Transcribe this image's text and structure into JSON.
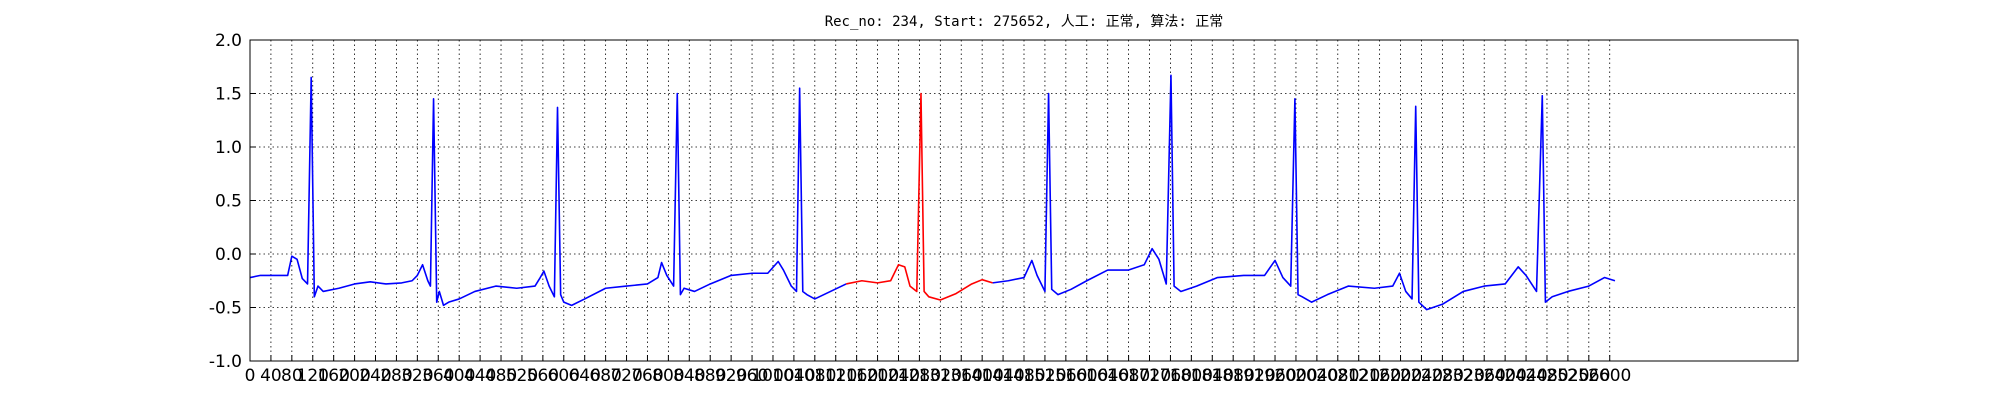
{
  "chart_data": {
    "type": "line",
    "title": "Rec_no: 234, Start: 275652, 人工: 正常, 算法: 正常",
    "xlim": [
      0,
      2960
    ],
    "ylim": [
      -1.0,
      2.0
    ],
    "grid": true,
    "xticks": [
      0,
      40,
      80,
      120,
      160,
      200,
      240,
      280,
      320,
      360,
      400,
      440,
      480,
      520,
      560,
      600,
      640,
      680,
      720,
      760,
      800,
      840,
      880,
      920,
      960,
      1000,
      1040,
      1080,
      1120,
      1160,
      1200,
      1240,
      1280,
      1320,
      1360,
      1400,
      1440,
      1480,
      1520,
      1560,
      1600,
      1640,
      1680,
      1720,
      1760,
      1800,
      1840,
      1880,
      1920,
      1960,
      2000,
      2040,
      2080,
      2120,
      2160,
      2200,
      2240,
      2280,
      2320,
      2360,
      2400,
      2440,
      2480,
      2520,
      2560,
      2600
    ],
    "yticks": [
      {
        "value": -1.0,
        "label": "-1.0"
      },
      {
        "value": -0.5,
        "label": "-0.5"
      },
      {
        "value": 0.0,
        "label": "0.0"
      },
      {
        "value": 0.5,
        "label": "0.5"
      },
      {
        "value": 1.0,
        "label": "1.0"
      },
      {
        "value": 1.5,
        "label": "1.5"
      },
      {
        "value": 2.0,
        "label": "2.0"
      }
    ],
    "series": [
      {
        "color": "#0000ff",
        "x": [
          0,
          20,
          50,
          72,
          80,
          90,
          100,
          110,
          117,
          123,
          130,
          140,
          170,
          200,
          230,
          260,
          290,
          310,
          320,
          330,
          340,
          345,
          351,
          357,
          362,
          370,
          380,
          400,
          430,
          470,
          510,
          545,
          555,
          562,
          572,
          582,
          588,
          594,
          600,
          615,
          640,
          680,
          720,
          760,
          780,
          787,
          797,
          810,
          817,
          823,
          830,
          850,
          880,
          920,
          960,
          990,
          1010,
          1020,
          1035,
          1045,
          1051,
          1057,
          1065,
          1080,
          1110,
          1140,
          1283,
          1420,
          1450,
          1480,
          1495,
          1505,
          1520,
          1527,
          1533,
          1545,
          1570,
          1600,
          1640,
          1680,
          1710,
          1725,
          1738,
          1752,
          1761,
          1767,
          1780,
          1810,
          1850,
          1900,
          1940,
          1960,
          1975,
          1990,
          1998,
          2004,
          2012,
          2030,
          2060,
          2100,
          2150,
          2185,
          2198,
          2210,
          2222,
          2229,
          2235,
          2250,
          2280,
          2320,
          2360,
          2400,
          2425,
          2440,
          2460,
          2471,
          2477,
          2490,
          2520,
          2560,
          2590,
          2610
        ],
        "values": [
          -0.22,
          -0.2,
          -0.2,
          -0.2,
          -0.02,
          -0.05,
          -0.23,
          -0.28,
          1.65,
          -0.4,
          -0.3,
          -0.35,
          -0.32,
          -0.28,
          -0.26,
          -0.28,
          -0.27,
          -0.25,
          -0.2,
          -0.1,
          -0.25,
          -0.3,
          1.45,
          -0.45,
          -0.35,
          -0.48,
          -0.45,
          -0.42,
          -0.35,
          -0.3,
          -0.32,
          -0.3,
          -0.22,
          -0.16,
          -0.3,
          -0.4,
          1.37,
          -0.38,
          -0.45,
          -0.48,
          -0.42,
          -0.32,
          -0.3,
          -0.28,
          -0.22,
          -0.08,
          -0.2,
          -0.3,
          1.5,
          -0.38,
          -0.32,
          -0.35,
          -0.28,
          -0.2,
          -0.18,
          -0.18,
          -0.07,
          -0.15,
          -0.3,
          -0.35,
          1.55,
          -0.35,
          -0.38,
          -0.42,
          -0.35,
          -0.28,
          null,
          -0.27,
          -0.25,
          -0.22,
          -0.06,
          -0.2,
          -0.35,
          1.5,
          -0.33,
          -0.38,
          -0.33,
          -0.25,
          -0.15,
          -0.15,
          -0.1,
          0.05,
          -0.05,
          -0.28,
          1.67,
          -0.3,
          -0.35,
          -0.3,
          -0.22,
          -0.2,
          -0.2,
          -0.06,
          -0.22,
          -0.3,
          1.45,
          -0.38,
          -0.4,
          -0.45,
          -0.38,
          -0.3,
          -0.32,
          -0.3,
          -0.18,
          -0.35,
          -0.42,
          1.38,
          -0.45,
          -0.52,
          -0.47,
          -0.35,
          -0.3,
          -0.28,
          -0.12,
          -0.2,
          -0.35,
          1.48,
          -0.45,
          -0.4,
          -0.35,
          -0.3,
          -0.22,
          -0.25
        ]
      },
      {
        "color": "#ff0000",
        "x": [
          1140,
          1170,
          1200,
          1225,
          1240,
          1252,
          1262,
          1275,
          1283,
          1289,
          1298,
          1320,
          1350,
          1380,
          1400,
          1420
        ],
        "values": [
          -0.28,
          -0.25,
          -0.27,
          -0.25,
          -0.1,
          -0.12,
          -0.3,
          -0.35,
          1.5,
          -0.35,
          -0.4,
          -0.43,
          -0.37,
          -0.28,
          -0.24,
          -0.27
        ]
      }
    ]
  }
}
